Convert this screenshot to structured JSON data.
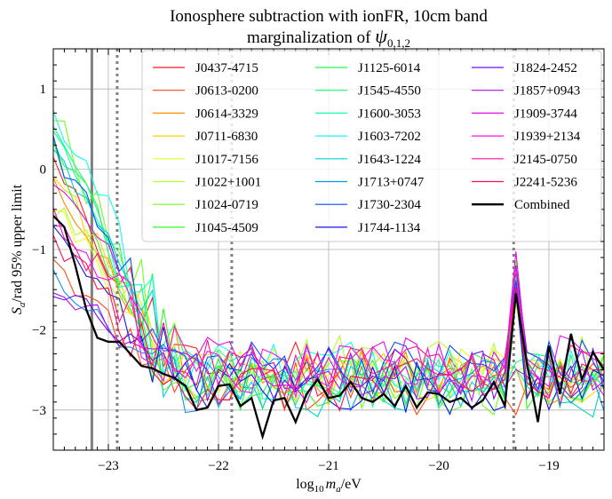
{
  "chart_data": {
    "type": "line",
    "title": "Ionosphere subtraction with ionFR, 10cm band",
    "subtitle_prefix": "marginalization of ",
    "subtitle_symbol": "ψ",
    "subtitle_sub": "0,1,2",
    "xlabel_prefix": "log",
    "xlabel_sub": "10",
    "xlabel_var": "m",
    "xlabel_var_sub": "a",
    "xlabel_suffix": "/eV",
    "ylabel_var": "S",
    "ylabel_var_sub": "a",
    "ylabel_suffix": "/rad 95% upper limit",
    "xlim": [
      -23.5,
      -18.5
    ],
    "ylim": [
      -3.5,
      1.5
    ],
    "x_ticks": [
      -23,
      -22,
      -21,
      -20,
      -19
    ],
    "x_tick_labels": [
      "−23",
      "−22",
      "−21",
      "−20",
      "−19"
    ],
    "y_ticks": [
      1,
      0,
      -1,
      -2,
      -3
    ],
    "y_tick_labels": [
      "1",
      "0",
      "−1",
      "−2",
      "−3"
    ],
    "grid": true,
    "legend_position": "top-right",
    "legend_columns": 3,
    "vertical_lines": [
      {
        "x": -23.15,
        "style": "solid",
        "color": "#808080"
      },
      {
        "x": -22.92,
        "style": "dotted",
        "color": "#808080"
      },
      {
        "x": -21.88,
        "style": "dotted",
        "color": "#808080"
      },
      {
        "x": -19.32,
        "style": "dotted",
        "color": "#808080"
      }
    ],
    "series": [
      {
        "name": "J0437-4715",
        "color": "#ff1f1f"
      },
      {
        "name": "J0613-0200",
        "color": "#ff4a14"
      },
      {
        "name": "J0614-3329",
        "color": "#ff8c00"
      },
      {
        "name": "J0711-6830",
        "color": "#ffd000"
      },
      {
        "name": "J1017-7156",
        "color": "#e9ff1a"
      },
      {
        "name": "J1022+1001",
        "color": "#b5ff2a"
      },
      {
        "name": "J1024-0719",
        "color": "#73ff1c"
      },
      {
        "name": "J1045-4509",
        "color": "#2aff1f"
      },
      {
        "name": "J1125-6014",
        "color": "#1cff4a"
      },
      {
        "name": "J1545-4550",
        "color": "#10ff78"
      },
      {
        "name": "J1600-3053",
        "color": "#10ffb2"
      },
      {
        "name": "J1603-7202",
        "color": "#10fff0"
      },
      {
        "name": "J1643-1224",
        "color": "#00d2d2"
      },
      {
        "name": "J1713+0747",
        "color": "#0a93ee"
      },
      {
        "name": "J1730-2304",
        "color": "#0a4cf2"
      },
      {
        "name": "J1744-1134",
        "color": "#1016e8"
      },
      {
        "name": "J1824-2452",
        "color": "#6a10f2"
      },
      {
        "name": "J1857+0943",
        "color": "#b010e6"
      },
      {
        "name": "J1909-3744",
        "color": "#e010e6"
      },
      {
        "name": "J1939+2134",
        "color": "#ff10ee"
      },
      {
        "name": "J2145-0750",
        "color": "#ff109b"
      },
      {
        "name": "J2241-5236",
        "color": "#ff104e"
      }
    ],
    "combined": {
      "name": "Combined",
      "color": "#000000",
      "x": [
        -23.5,
        -23.4,
        -23.3,
        -23.2,
        -23.1,
        -23.0,
        -22.9,
        -22.8,
        -22.7,
        -22.6,
        -22.5,
        -22.4,
        -22.3,
        -22.2,
        -22.1,
        -22.0,
        -21.9,
        -21.8,
        -21.7,
        -21.6,
        -21.5,
        -21.4,
        -21.3,
        -21.2,
        -21.1,
        -21.0,
        -20.9,
        -20.8,
        -20.7,
        -20.6,
        -20.5,
        -20.4,
        -20.3,
        -20.2,
        -20.1,
        -20.0,
        -19.9,
        -19.8,
        -19.7,
        -19.6,
        -19.5,
        -19.4,
        -19.3,
        -19.2,
        -19.1,
        -19.0,
        -18.9,
        -18.8,
        -18.7,
        -18.6,
        -18.5
      ],
      "y": [
        -0.58,
        -0.72,
        -1.2,
        -1.75,
        -2.1,
        -2.15,
        -2.15,
        -2.3,
        -2.45,
        -2.48,
        -2.55,
        -2.6,
        -2.7,
        -3.0,
        -2.97,
        -2.7,
        -2.68,
        -2.95,
        -2.85,
        -3.33,
        -2.88,
        -2.85,
        -3.15,
        -2.8,
        -2.62,
        -2.85,
        -2.82,
        -2.65,
        -2.85,
        -2.9,
        -2.8,
        -2.95,
        -2.7,
        -2.97,
        -2.78,
        -2.8,
        -2.9,
        -2.85,
        -2.97,
        -2.88,
        -2.65,
        -2.95,
        -1.55,
        -2.42,
        -3.15,
        -2.2,
        -2.8,
        -2.05,
        -2.62,
        -2.28,
        -2.5
      ]
    }
  }
}
